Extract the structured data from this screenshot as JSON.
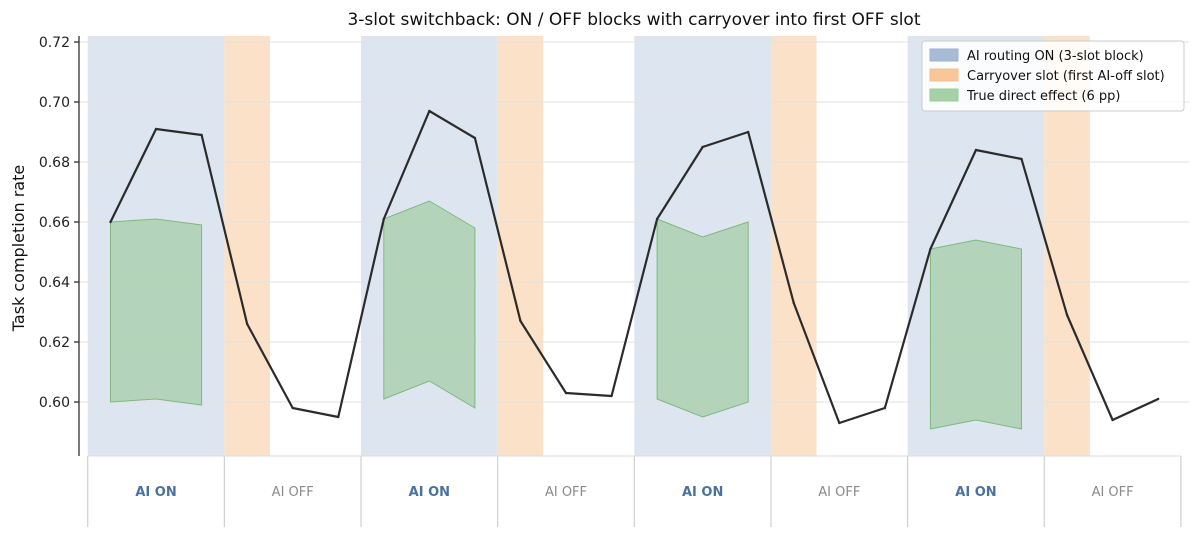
{
  "chart_data": {
    "type": "line",
    "title": "3-slot switchback: ON / OFF blocks with carryover into first OFF slot",
    "xlabel": "",
    "ylabel": "Task completion rate",
    "ylim": [
      0.582,
      0.722
    ],
    "yticks": [
      "0.60",
      "0.62",
      "0.64",
      "0.66",
      "0.68",
      "0.70",
      "0.72"
    ],
    "ytick_values": [
      0.6,
      0.62,
      0.64,
      0.66,
      0.68,
      0.7,
      0.72
    ],
    "x": [
      0,
      1,
      2,
      3,
      4,
      5,
      6,
      7,
      8,
      9,
      10,
      11,
      12,
      13,
      14,
      15,
      16,
      17,
      18,
      19,
      20,
      21,
      22,
      23
    ],
    "series": [
      {
        "values": [
          0.66,
          0.691,
          0.689,
          0.626,
          0.598,
          0.595,
          0.661,
          0.697,
          0.688,
          0.627,
          0.603,
          0.602,
          0.661,
          0.685,
          0.69,
          0.633,
          0.593,
          0.598,
          0.651,
          0.684,
          0.681,
          0.629,
          0.594,
          0.601
        ]
      }
    ],
    "on_blocks": [
      [
        0,
        2
      ],
      [
        6,
        8
      ],
      [
        12,
        14
      ],
      [
        18,
        20
      ]
    ],
    "carryover_slots": [
      3,
      9,
      15,
      21
    ],
    "effect_bands": [
      {
        "x": [
          0,
          1,
          2
        ],
        "upper": [
          0.66,
          0.661,
          0.659
        ],
        "lower": [
          0.6,
          0.601,
          0.599
        ]
      },
      {
        "x": [
          6,
          7,
          8
        ],
        "upper": [
          0.661,
          0.667,
          0.658
        ],
        "lower": [
          0.601,
          0.607,
          0.598
        ]
      },
      {
        "x": [
          12,
          13,
          14
        ],
        "upper": [
          0.661,
          0.655,
          0.66
        ],
        "lower": [
          0.601,
          0.595,
          0.6
        ]
      },
      {
        "x": [
          18,
          19,
          20
        ],
        "upper": [
          0.651,
          0.654,
          0.651
        ],
        "lower": [
          0.591,
          0.594,
          0.591
        ]
      }
    ],
    "legend": {
      "placement": "top-right",
      "entries": [
        {
          "label": "AI routing ON (3-slot block)",
          "color": "#9db4d0"
        },
        {
          "label": "Carryover slot (first AI-off slot)",
          "color": "#f7c08c"
        },
        {
          "label": "True direct effect (6 pp)",
          "color": "#9ccb9c"
        }
      ]
    },
    "block_labels": [
      "AI ON",
      "AI OFF",
      "AI ON",
      "AI OFF",
      "AI ON",
      "AI OFF",
      "AI ON",
      "AI OFF"
    ],
    "grid": "horizontal"
  },
  "colors": {
    "on_fill": "#dde6f0",
    "carryover_fill": "#fbe1c7",
    "effect_fill": "#9ccb9c",
    "line": "#2b2b2b",
    "on_label": "#4a72a0",
    "off_label": "#8a8a8a",
    "grid": "#e2e2e2"
  }
}
